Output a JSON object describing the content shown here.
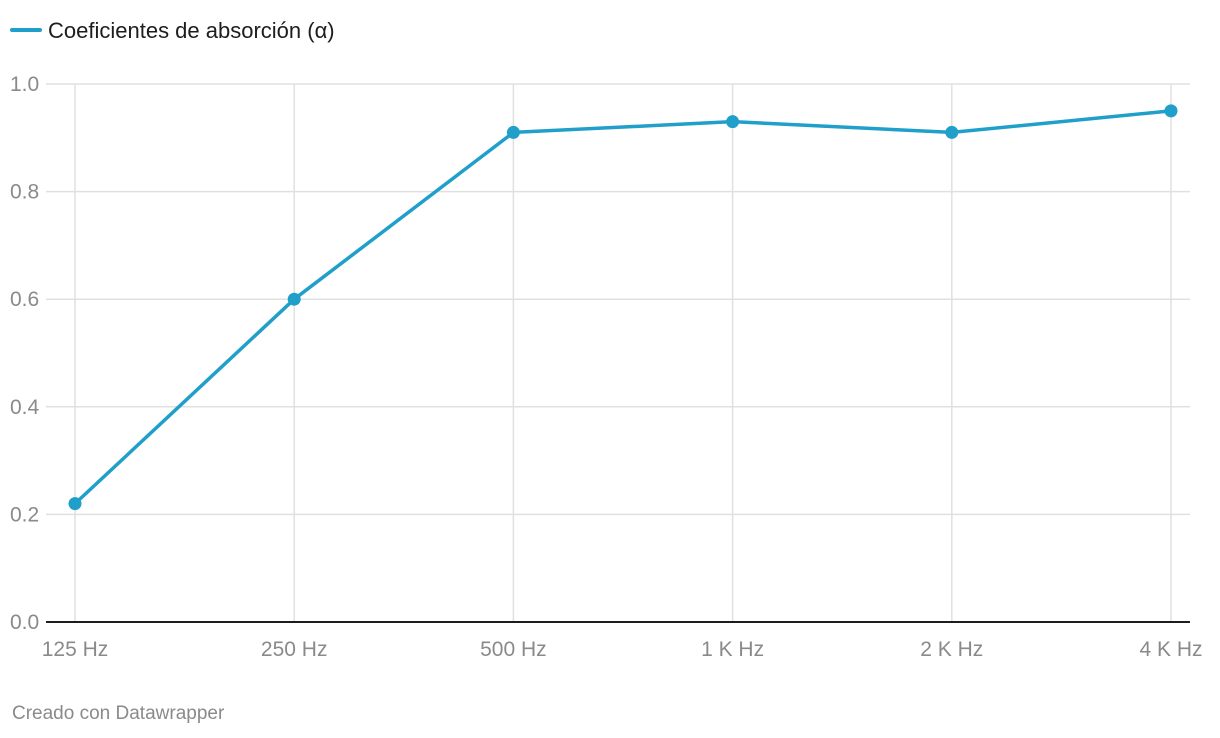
{
  "chart_data": {
    "type": "line",
    "categories": [
      "125 Hz",
      "250 Hz",
      "500 Hz",
      "1 K Hz",
      "2 K Hz",
      "4 K Hz"
    ],
    "series": [
      {
        "name": "Coeficientes de absorción (α)",
        "values": [
          0.22,
          0.6,
          0.91,
          0.93,
          0.91,
          0.95
        ]
      }
    ],
    "yticks": [
      "0.0",
      "0.2",
      "0.4",
      "0.6",
      "0.8",
      "1.0"
    ],
    "ylim": [
      0,
      1
    ],
    "grid": true,
    "legend_position": "top-left",
    "colors": {
      "series": "#1f9fc9",
      "grid": "#e0e0e0",
      "axis": "#1d1d1d"
    }
  },
  "footer": {
    "credit": "Creado con Datawrapper"
  }
}
